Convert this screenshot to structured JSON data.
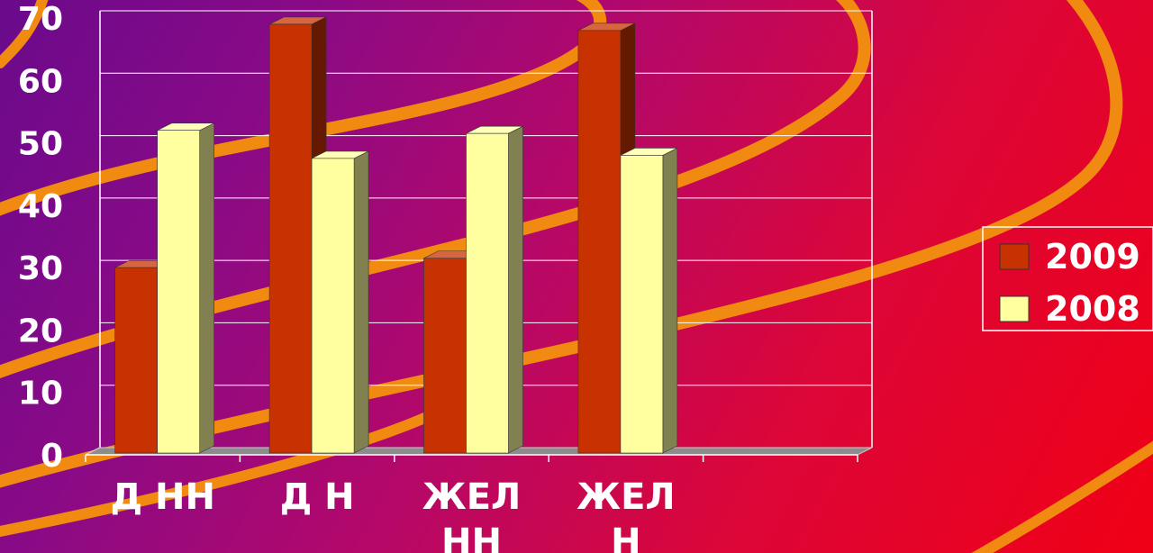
{
  "chart_data": {
    "type": "bar",
    "title": "",
    "xlabel": "",
    "ylabel": "",
    "ylim": [
      0,
      70
    ],
    "yticks": [
      "0",
      "10",
      "20",
      "30",
      "40",
      "50",
      "60",
      "70"
    ],
    "categories": [
      [
        "Д НН"
      ],
      [
        "Д Н"
      ],
      [
        "ЖЕЛ",
        "НН"
      ],
      [
        "ЖЕЛ",
        "Н"
      ],
      []
    ],
    "series": [
      {
        "name": "2009",
        "values": [
          30,
          69,
          31.5,
          68,
          null
        ]
      },
      {
        "name": "2008",
        "values": [
          52,
          47.5,
          51.5,
          48,
          null
        ]
      }
    ],
    "grid": true,
    "legend_position": "right",
    "colors": {
      "2009": "#c83200",
      "2008": "#ffffa0"
    }
  }
}
